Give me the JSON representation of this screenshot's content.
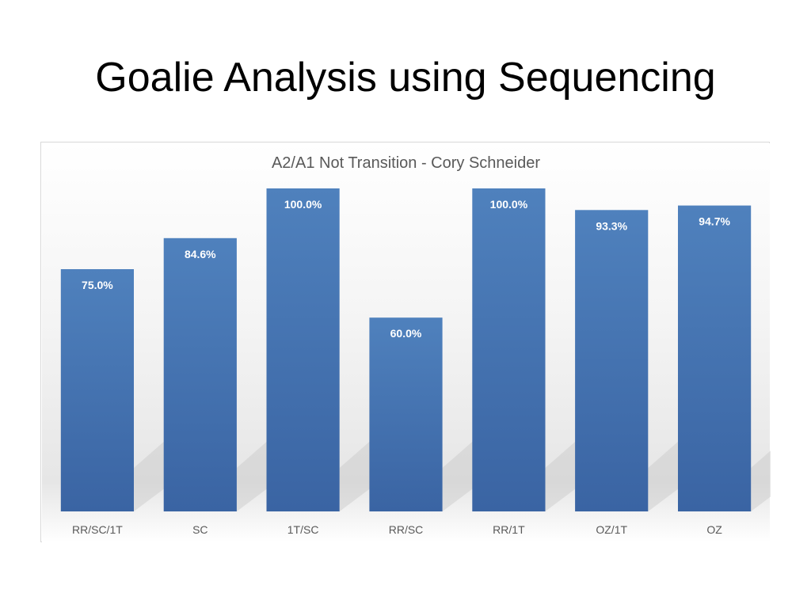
{
  "slide": {
    "title": "Goalie Analysis using Sequencing"
  },
  "colors": {
    "bar": "#4472c4",
    "bar_top": "#4f81bd",
    "bar_bottom": "#3a64a3",
    "label": "#ffffff",
    "axis_text": "#595959"
  },
  "chart_data": {
    "type": "bar",
    "title": "A2/A1 Not Transition - Cory Schneider",
    "xlabel": "",
    "ylabel": "",
    "ylim": [
      0,
      100
    ],
    "grid": false,
    "categories": [
      "RR/SC/1T",
      "SC",
      "1T/SC",
      "RR/SC",
      "RR/1T",
      "OZ/1T",
      "OZ"
    ],
    "values": [
      75.0,
      84.6,
      100.0,
      60.0,
      100.0,
      93.3,
      94.7
    ],
    "data_labels": [
      "75.0%",
      "84.6%",
      "100.0%",
      "60.0%",
      "100.0%",
      "93.3%",
      "94.7%"
    ]
  }
}
